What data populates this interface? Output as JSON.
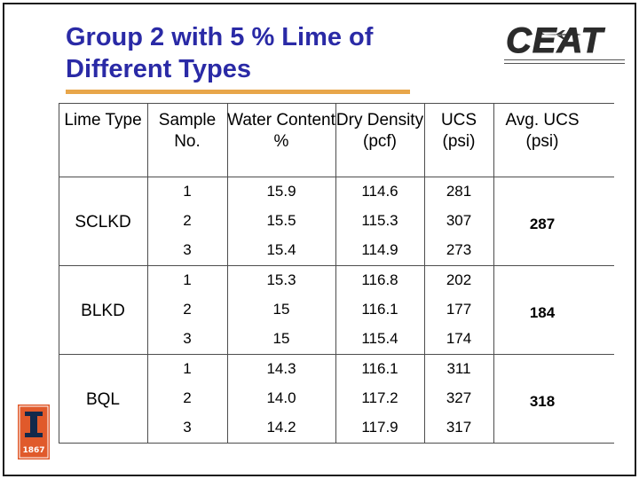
{
  "title_line1": "Group 2 with 5 % Lime of",
  "title_line2": "Different Types",
  "columns": [
    "Lime Type",
    "Sample No.",
    "Water Content %",
    "Dry Density (pcf)",
    "UCS (psi)",
    "Avg. UCS (psi)"
  ],
  "groups": [
    {
      "lime_type": "SCLKD",
      "avg_ucs": "287",
      "rows": [
        {
          "sample": "1",
          "water": "15.9",
          "density": "114.6",
          "ucs": "281"
        },
        {
          "sample": "2",
          "water": "15.5",
          "density": "115.3",
          "ucs": "307"
        },
        {
          "sample": "3",
          "water": "15.4",
          "density": "114.9",
          "ucs": "273"
        }
      ]
    },
    {
      "lime_type": "BLKD",
      "avg_ucs": "184",
      "rows": [
        {
          "sample": "1",
          "water": "15.3",
          "density": "116.8",
          "ucs": "202"
        },
        {
          "sample": "2",
          "water": "15",
          "density": "116.1",
          "ucs": "177"
        },
        {
          "sample": "3",
          "water": "15",
          "density": "115.4",
          "ucs": "174"
        }
      ]
    },
    {
      "lime_type": "BQL",
      "avg_ucs": "318",
      "rows": [
        {
          "sample": "1",
          "water": "14.3",
          "density": "116.1",
          "ucs": "311"
        },
        {
          "sample": "2",
          "water": "14.0",
          "density": "117.2",
          "ucs": "327"
        },
        {
          "sample": "3",
          "water": "14.2",
          "density": "117.9",
          "ucs": "317"
        }
      ]
    }
  ],
  "logo_text": "CEAT",
  "seal_text": "1867",
  "colors": {
    "title": "#2a2aa6",
    "rule": "#e8a64a",
    "grid": "#4d4d4d"
  }
}
